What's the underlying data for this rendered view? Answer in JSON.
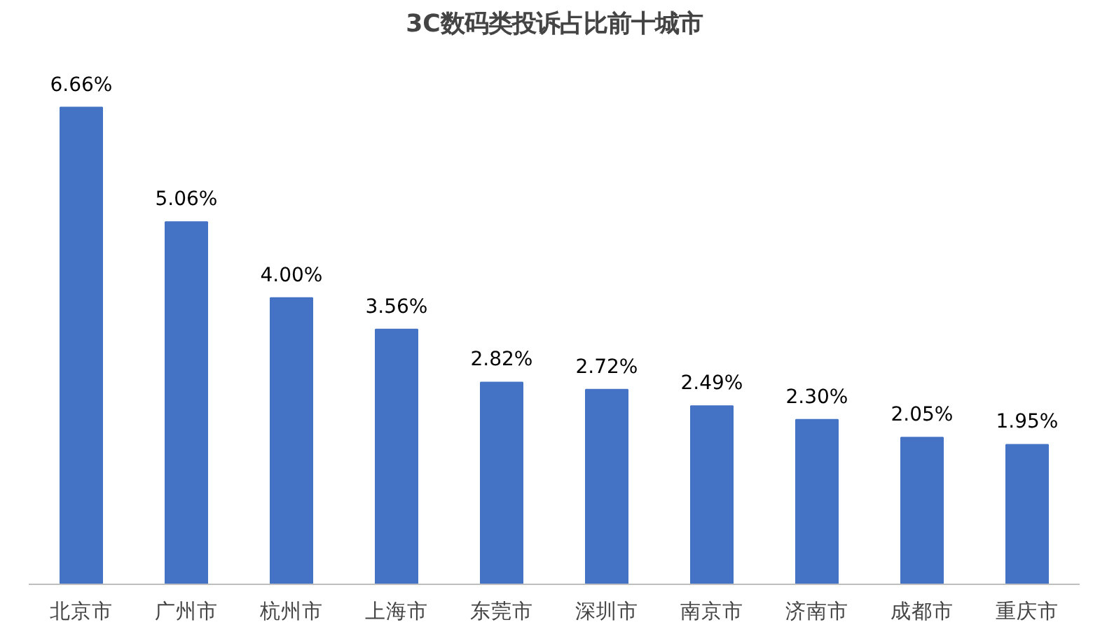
{
  "chart_data": {
    "type": "bar",
    "title": "3C数码类投诉占比前十城市",
    "categories": [
      "北京市",
      "广州市",
      "杭州市",
      "上海市",
      "东莞市",
      "深圳市",
      "南京市",
      "济南市",
      "成都市",
      "重庆市"
    ],
    "values": [
      6.66,
      5.06,
      4.0,
      3.56,
      2.82,
      2.72,
      2.49,
      2.3,
      2.05,
      1.95
    ],
    "value_labels": [
      "6.66%",
      "5.06%",
      "4.00%",
      "3.56%",
      "2.82%",
      "2.72%",
      "2.49%",
      "2.30%",
      "2.05%",
      "1.95%"
    ],
    "color": "#4472c4"
  }
}
